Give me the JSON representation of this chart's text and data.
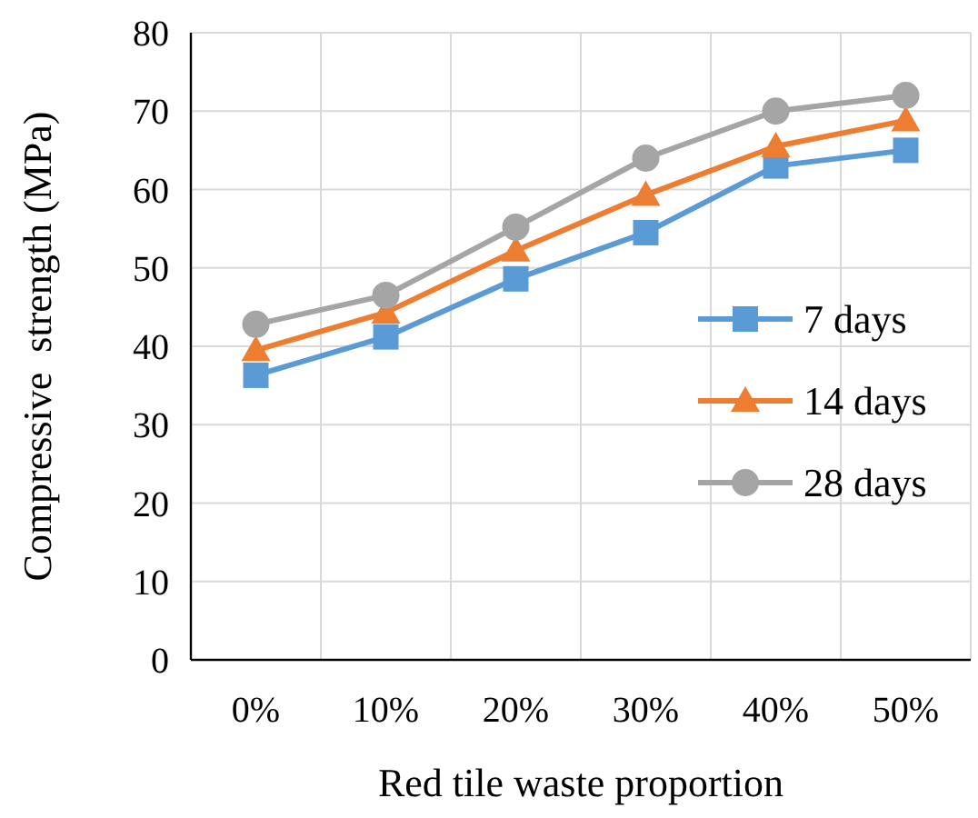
{
  "chart_data": {
    "type": "line",
    "xlabel": "Red tile waste proportion",
    "ylabel": "Compressive  strength (MPa)",
    "categories": [
      "0%",
      "10%",
      "20%",
      "30%",
      "40%",
      "50%"
    ],
    "ylim": [
      0,
      80
    ],
    "yticks": [
      0,
      10,
      20,
      30,
      40,
      50,
      60,
      70,
      80
    ],
    "grid": true,
    "legend": "right",
    "series": [
      {
        "name": "7 days",
        "color": "#5b9bd5",
        "marker": "square",
        "values": [
          36.3,
          41.2,
          48.6,
          54.5,
          63,
          65
        ]
      },
      {
        "name": "14 days",
        "color": "#ed7d31",
        "marker": "triangle",
        "values": [
          39.5,
          44.3,
          52.2,
          59.3,
          65.5,
          68.8
        ]
      },
      {
        "name": "28 days",
        "color": "#a5a5a5",
        "marker": "circle",
        "values": [
          42.8,
          46.5,
          55.2,
          64,
          70,
          72
        ]
      }
    ]
  }
}
